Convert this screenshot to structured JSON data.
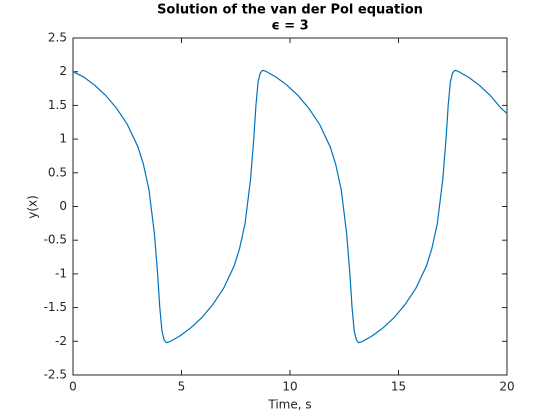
{
  "chart_data": {
    "type": "line",
    "title": "Solution of the van der Pol equation",
    "subtitle": "ϵ = 3",
    "x_label": "Time, s",
    "y_label": "y(x)",
    "xlim": [
      0,
      20
    ],
    "xticks": [
      0,
      5,
      10,
      15,
      20
    ],
    "ylim": [
      -2.5,
      2.5
    ],
    "yticks": [
      -2.5,
      -2,
      -1.5,
      -1,
      -0.5,
      0,
      0.5,
      1,
      1.5,
      2,
      2.5
    ],
    "grid": false,
    "series": [
      {
        "color": "#0072bd",
        "x": [
          0,
          0.5,
          1,
          1.5,
          2,
          2.5,
          3,
          3.25,
          3.5,
          3.75,
          3.9,
          4.0,
          4.1,
          4.2,
          4.3,
          4.43,
          4.93,
          5.43,
          5.93,
          6.43,
          6.93,
          7.43,
          7.68,
          7.93,
          8.18,
          8.33,
          8.43,
          8.53,
          8.63,
          8.73,
          8.86,
          9.36,
          9.86,
          10.36,
          10.86,
          11.36,
          11.86,
          12.11,
          12.36,
          12.61,
          12.76,
          12.86,
          12.96,
          13.06,
          13.16,
          13.29,
          13.79,
          14.29,
          14.79,
          15.29,
          15.79,
          16.29,
          16.54,
          16.79,
          17.04,
          17.19,
          17.29,
          17.39,
          17.49,
          17.59,
          17.72,
          18.22,
          18.72,
          19.22,
          19.72,
          20
        ],
        "values": [
          2.0,
          1.92,
          1.8,
          1.65,
          1.46,
          1.22,
          0.88,
          0.62,
          0.25,
          -0.4,
          -1.0,
          -1.5,
          -1.85,
          -1.98,
          -2.02,
          -2.01,
          -1.92,
          -1.8,
          -1.65,
          -1.46,
          -1.22,
          -0.88,
          -0.62,
          -0.25,
          0.4,
          1.0,
          1.5,
          1.85,
          1.98,
          2.02,
          2.01,
          1.92,
          1.8,
          1.65,
          1.46,
          1.22,
          0.88,
          0.62,
          0.25,
          -0.4,
          -1.0,
          -1.5,
          -1.85,
          -1.98,
          -2.02,
          -2.01,
          -1.92,
          -1.8,
          -1.65,
          -1.46,
          -1.22,
          -0.88,
          -0.62,
          -0.25,
          0.4,
          1.0,
          1.5,
          1.85,
          1.98,
          2.02,
          2.01,
          1.92,
          1.8,
          1.65,
          1.46,
          1.38
        ]
      }
    ]
  }
}
